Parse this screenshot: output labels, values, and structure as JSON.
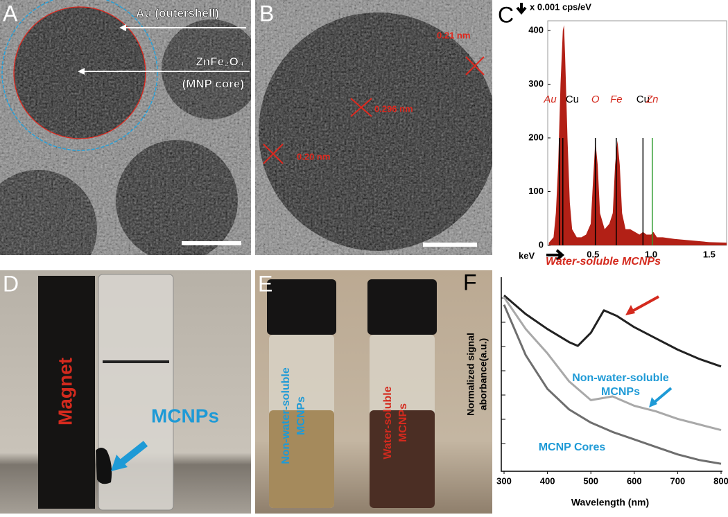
{
  "panel_labels": [
    "A",
    "B",
    "C",
    "D",
    "E",
    "F"
  ],
  "tem_a": {
    "shell_label": "Au (outershell)",
    "core_label": "ZnFe₂O₄",
    "core_sublabel": "(MNP core)"
  },
  "tem_b": {
    "spacings": [
      "0.21 nm",
      "0.296 nm",
      "0.20 nm"
    ]
  },
  "photo_d": {
    "magnet": "Magnet",
    "particles": "MCNPs"
  },
  "photo_e": {
    "vials": [
      [
        "Non-water-soluble",
        "MCNPs"
      ],
      [
        "Water-soluble",
        "MCNPs"
      ]
    ]
  },
  "chart_data": [
    {
      "type": "area",
      "y_unit_label": "x 0.001 cps/eV",
      "x_unit_label": "keV",
      "xlim": [
        0.11,
        1.65
      ],
      "xticks": [
        0.5,
        {
          "value": 1,
          "label": "1.0"
        },
        1.5
      ],
      "ylim": [
        0,
        418
      ],
      "yticks": [
        0,
        100,
        200,
        300,
        400
      ],
      "series": [
        {
          "color": "#b22016",
          "x": [
            0.12,
            0.16,
            0.18,
            0.2,
            0.22,
            0.24,
            0.25,
            0.26,
            0.28,
            0.3,
            0.32,
            0.36,
            0.4,
            0.44,
            0.48,
            0.5,
            0.52,
            0.54,
            0.56,
            0.6,
            0.64,
            0.67,
            0.69,
            0.71,
            0.73,
            0.75,
            0.78,
            0.82,
            0.86,
            0.9,
            0.93,
            0.96,
            1.0,
            1.02,
            1.05,
            1.1,
            1.2,
            1.3,
            1.4,
            1.5,
            1.65
          ],
          "values": [
            5,
            15,
            60,
            150,
            300,
            400,
            410,
            350,
            200,
            80,
            30,
            15,
            15,
            20,
            40,
            120,
            195,
            150,
            60,
            30,
            40,
            60,
            150,
            195,
            150,
            60,
            30,
            30,
            25,
            20,
            25,
            20,
            20,
            25,
            15,
            15,
            12,
            10,
            8,
            6,
            5
          ]
        }
      ],
      "peak_lines": [
        {
          "label": "Au",
          "x": 0.21,
          "value": 200,
          "color": "#000000",
          "label_color": "#d42a1e"
        },
        {
          "label": "Cu",
          "x": 0.24,
          "value": 200,
          "color": "#000000",
          "label_color": "#000000"
        },
        {
          "label": "O",
          "x": 0.52,
          "value": 200,
          "color": "#000000",
          "label_color": "#d42a1e"
        },
        {
          "label": "Fe",
          "x": 0.7,
          "value": 200,
          "color": "#000000",
          "label_color": "#d42a1e"
        },
        {
          "label": "Cu",
          "x": 0.93,
          "value": 200,
          "color": "#000000",
          "label_color": "#000000"
        },
        {
          "label": "Zn",
          "x": 1.01,
          "value": 200,
          "color": "#2e9b2e",
          "label_color": "#d42a1e"
        }
      ]
    },
    {
      "type": "line",
      "x_label": "Wavelength (nm)",
      "y_label": [
        "Normalized signal",
        "aborbance(a.u.)"
      ],
      "xlim": [
        300,
        800
      ],
      "xticks": [
        300,
        400,
        500,
        600,
        700,
        800
      ],
      "ylim": [
        0,
        1
      ],
      "series": [
        {
          "name": "Water-soluble MCNPs",
          "color": "#222222",
          "label_color": "#d42a1e",
          "x": [
            300,
            350,
            400,
            450,
            470,
            500,
            530,
            560,
            600,
            650,
            700,
            750,
            800
          ],
          "values": [
            0.94,
            0.84,
            0.76,
            0.69,
            0.67,
            0.74,
            0.86,
            0.83,
            0.77,
            0.71,
            0.65,
            0.6,
            0.56
          ]
        },
        {
          "name": "Non-water-soluble MCNPs",
          "color": "#a9a9a9",
          "label_color": "#1e9ad6",
          "x": [
            300,
            350,
            400,
            450,
            500,
            550,
            600,
            650,
            700,
            750,
            800
          ],
          "values": [
            0.93,
            0.76,
            0.63,
            0.48,
            0.38,
            0.4,
            0.35,
            0.32,
            0.28,
            0.25,
            0.22
          ]
        },
        {
          "name": "MCNP Cores",
          "color": "#6e6e6e",
          "label_color": "#1e9ad6",
          "x": [
            300,
            350,
            400,
            450,
            500,
            550,
            600,
            650,
            700,
            750,
            800
          ],
          "values": [
            0.89,
            0.62,
            0.44,
            0.33,
            0.26,
            0.21,
            0.17,
            0.13,
            0.09,
            0.06,
            0.04
          ]
        }
      ]
    }
  ]
}
